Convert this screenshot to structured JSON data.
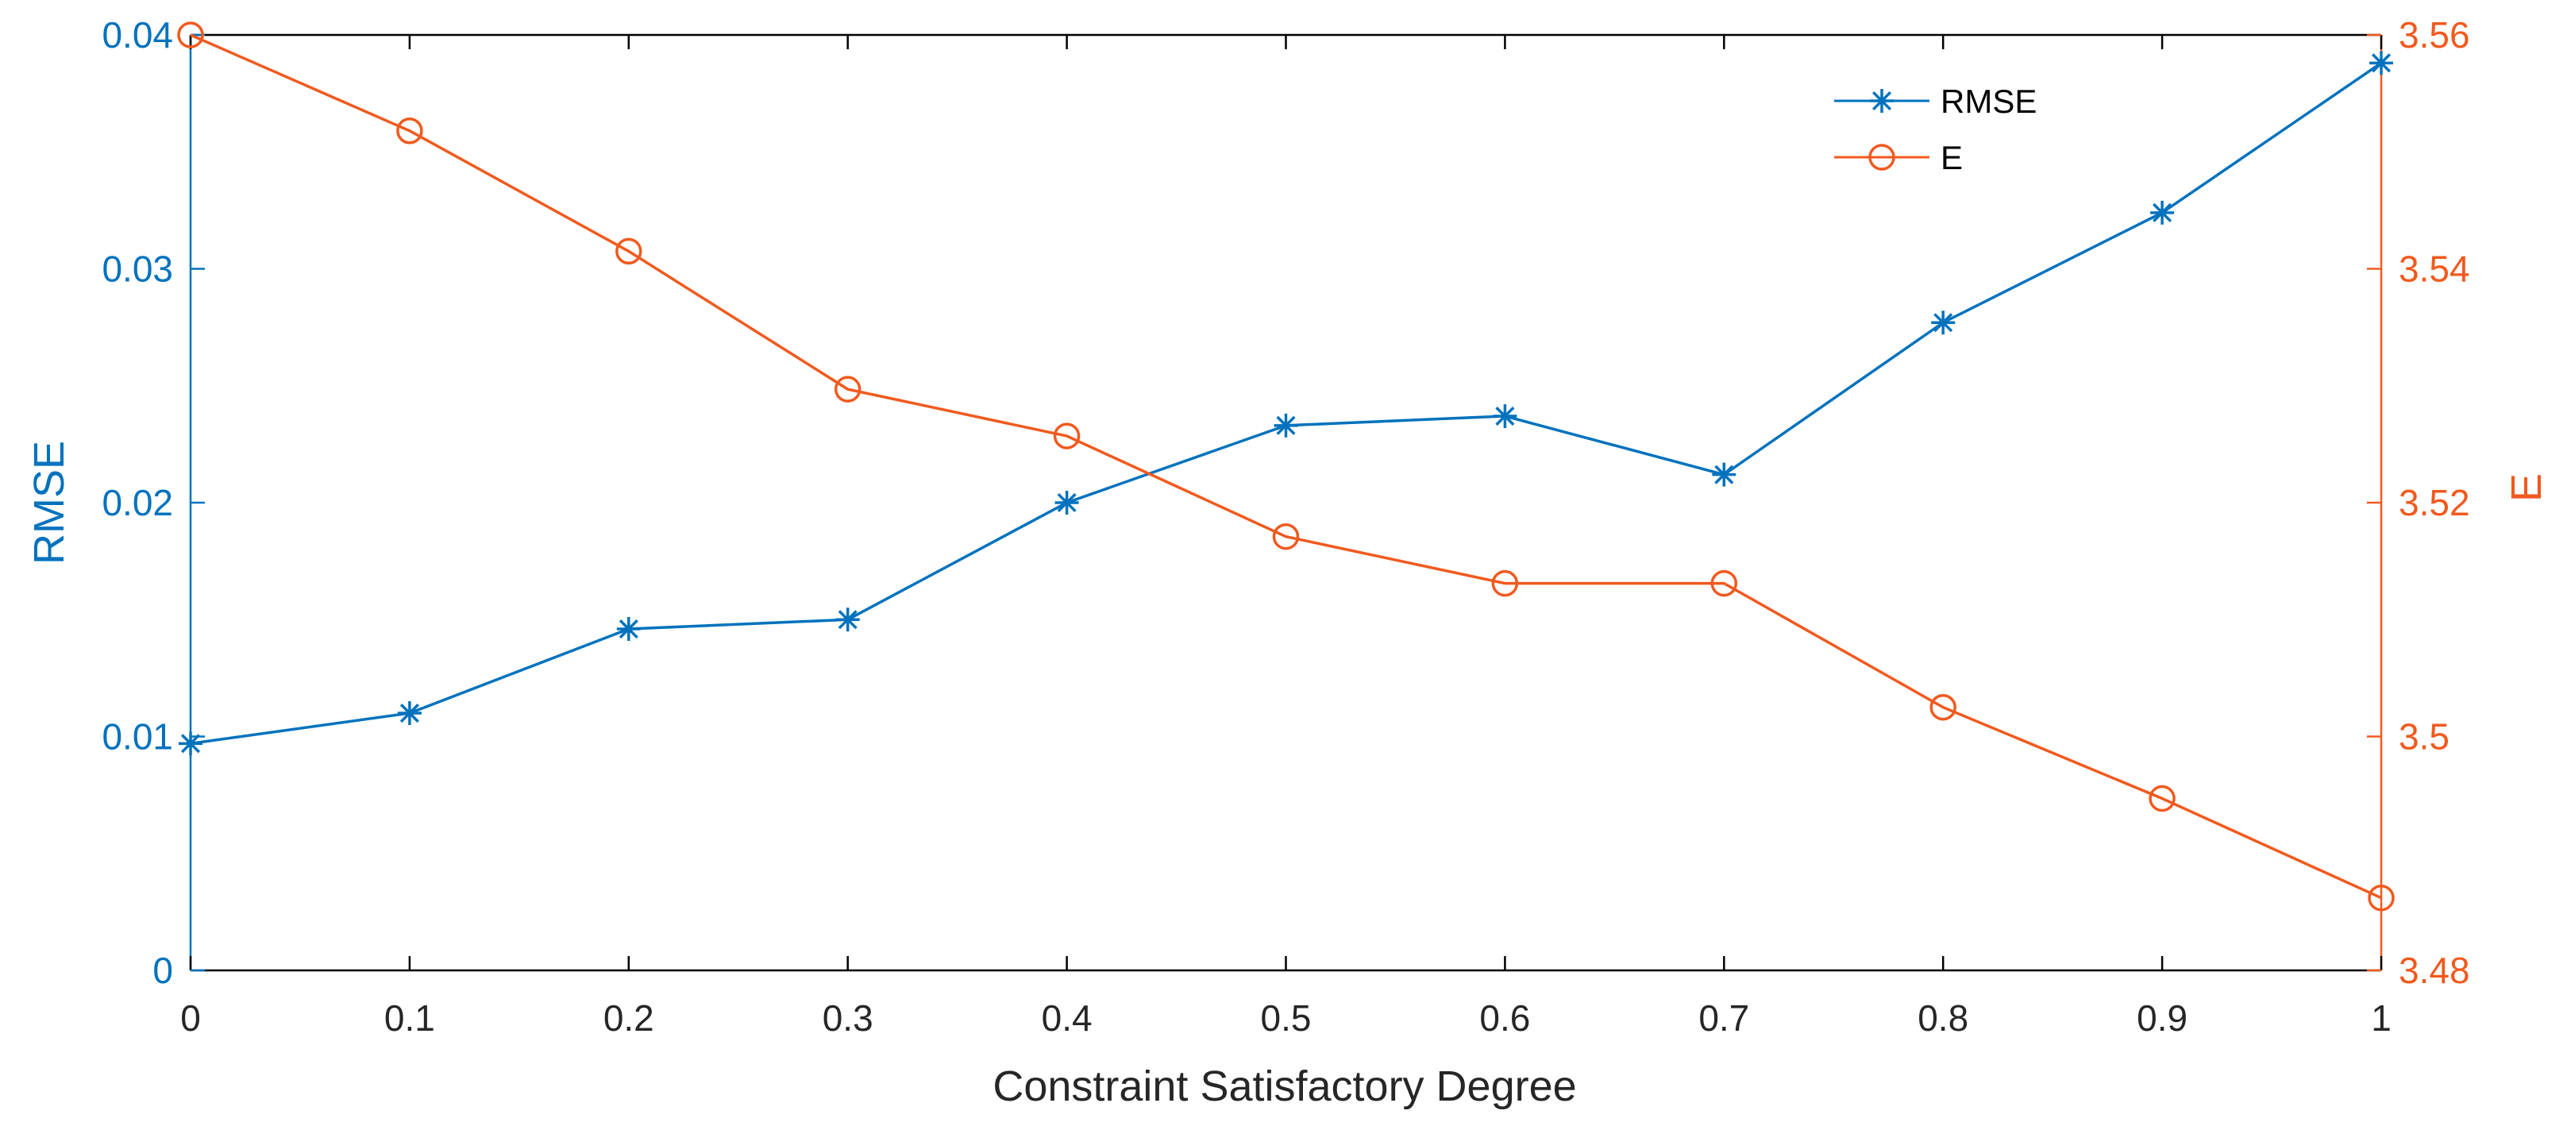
{
  "chart_data": {
    "type": "line",
    "title": "",
    "xlabel": "Constraint Satisfactory Degree",
    "ylabel_left": "RMSE",
    "ylabel_right": "E",
    "x": [
      0,
      0.1,
      0.2,
      0.3,
      0.4,
      0.5,
      0.6,
      0.7,
      0.8,
      0.9,
      1
    ],
    "xlim": [
      0,
      1
    ],
    "ylim_left": [
      0,
      0.04
    ],
    "ylim_right": [
      3.48,
      3.56
    ],
    "x_ticks": [
      "0",
      "0.1",
      "0.2",
      "0.3",
      "0.4",
      "0.5",
      "0.6",
      "0.7",
      "0.8",
      "0.9",
      "1"
    ],
    "y_ticks_left": [
      {
        "value": 0,
        "label": "0"
      },
      {
        "value": 0.01,
        "label": "0.01"
      },
      {
        "value": 0.02,
        "label": "0.02"
      },
      {
        "value": 0.03,
        "label": "0.03"
      },
      {
        "value": 0.04,
        "label": "0.04"
      }
    ],
    "y_ticks_right": [
      {
        "value": 3.48,
        "label": "3.48"
      },
      {
        "value": 3.5,
        "label": "3.5"
      },
      {
        "value": 3.52,
        "label": "3.52"
      },
      {
        "value": 3.54,
        "label": "3.54"
      },
      {
        "value": 3.56,
        "label": "3.56"
      }
    ],
    "grid": false,
    "legend_position": "top-right",
    "series": [
      {
        "name": "RMSE",
        "axis": "left",
        "marker": "asterisk",
        "color": "#0072BD",
        "values": [
          0.0097,
          0.011,
          0.0146,
          0.015,
          0.02,
          0.0233,
          0.0237,
          0.0212,
          0.0277,
          0.0324,
          0.0388
        ]
      },
      {
        "name": "E",
        "axis": "right",
        "marker": "circle",
        "color": "#F05A1E",
        "values": [
          3.56,
          3.5518,
          3.5415,
          3.5297,
          3.5257,
          3.5171,
          3.5131,
          3.5131,
          3.5025,
          3.4947,
          3.4862
        ]
      }
    ]
  },
  "colors": {
    "left_axis": "#0072BD",
    "right_axis": "#F05A1E",
    "frame": "#000000"
  }
}
